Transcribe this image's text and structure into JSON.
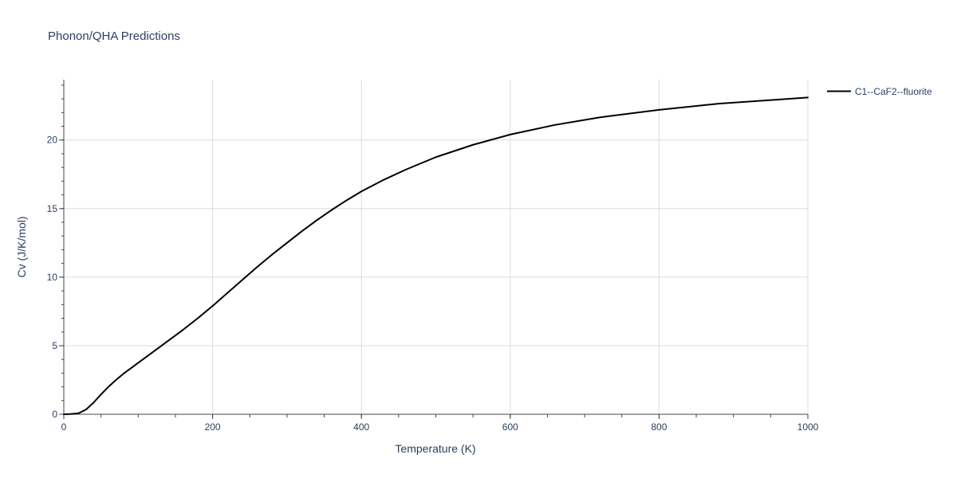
{
  "chart_data": {
    "type": "line",
    "title": "Phonon/QHA Predictions",
    "xlabel": "Temperature (K)",
    "ylabel": "Cv (J/K/mol)",
    "xlim": [
      0,
      1000
    ],
    "ylim": [
      0,
      24.4
    ],
    "x_ticks": [
      0,
      200,
      400,
      600,
      800,
      1000
    ],
    "y_ticks": [
      0,
      5,
      10,
      15,
      20
    ],
    "x_minor_step": 50,
    "y_minor_step": 1,
    "grid": true,
    "legend_position": "top-right",
    "series": [
      {
        "name": "C1--CaF2--fluorite",
        "color": "#000000",
        "x": [
          0,
          10,
          20,
          30,
          40,
          50,
          60,
          70,
          80,
          100,
          120,
          140,
          160,
          180,
          200,
          220,
          240,
          260,
          280,
          300,
          320,
          340,
          360,
          380,
          400,
          430,
          460,
          500,
          550,
          600,
          660,
          720,
          800,
          880,
          960,
          1000
        ],
        "y": [
          0,
          0.02,
          0.08,
          0.35,
          0.85,
          1.45,
          2.0,
          2.5,
          2.95,
          3.75,
          4.55,
          5.35,
          6.15,
          7.0,
          7.9,
          8.85,
          9.8,
          10.75,
          11.65,
          12.5,
          13.35,
          14.15,
          14.9,
          15.6,
          16.25,
          17.1,
          17.85,
          18.75,
          19.65,
          20.4,
          21.1,
          21.65,
          22.2,
          22.65,
          22.95,
          23.1
        ]
      }
    ]
  }
}
